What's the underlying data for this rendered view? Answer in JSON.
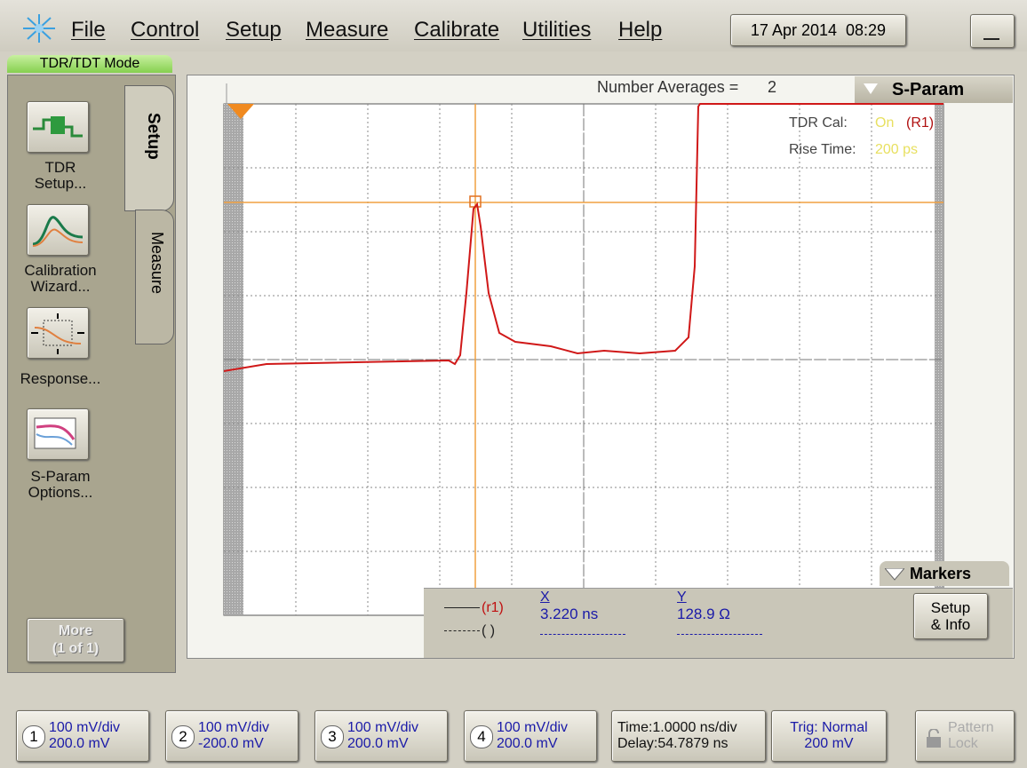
{
  "menu": [
    "File",
    "Control",
    "Setup",
    "Measure",
    "Calibrate",
    "Utilities",
    "Help"
  ],
  "datetime": "17 Apr 2014  08:29",
  "mode": "TDR/TDT Mode",
  "side_buttons": [
    [
      "TDR",
      "Setup..."
    ],
    [
      "Calibration",
      "Wizard..."
    ],
    [
      "Response..."
    ],
    [
      "S-Param",
      "Options..."
    ]
  ],
  "more": [
    "More",
    "(1 of 1)"
  ],
  "tabs": [
    "Setup",
    "Measure"
  ],
  "averages": {
    "label": "Number Averages =",
    "value": "2"
  },
  "sparam": "S-Param",
  "tdr_cal": {
    "label": "TDR Cal:",
    "value": "On",
    "ref": "(R1)"
  },
  "rise_time": {
    "label": "Rise Time:",
    "value": "200 ps"
  },
  "markers": {
    "title": "Markers",
    "rows": [
      "(r1)",
      "( )"
    ],
    "x_header": "X",
    "y_header": "Y",
    "x_value": "3.220 ns",
    "y_value": "128.9 Ω",
    "setup_info": [
      "Setup",
      "& Info"
    ]
  },
  "channels": [
    {
      "number": "1",
      "scale": "100 mV/div",
      "offset": "200.0 mV"
    },
    {
      "number": "2",
      "scale": "100 mV/div",
      "offset": "-200.0 mV"
    },
    {
      "number": "3",
      "scale": "100 mV/div",
      "offset": "200.0 mV"
    },
    {
      "number": "4",
      "scale": "100 mV/div",
      "offset": "200.0 mV"
    }
  ],
  "timebase": {
    "time": "Time:1.0000 ns/div",
    "delay": "Delay:54.7879 ns"
  },
  "trigger": {
    "mode": "Trig: Normal",
    "level": "200 mV"
  },
  "pattern_lock": [
    "Pattern",
    "Lock"
  ]
}
